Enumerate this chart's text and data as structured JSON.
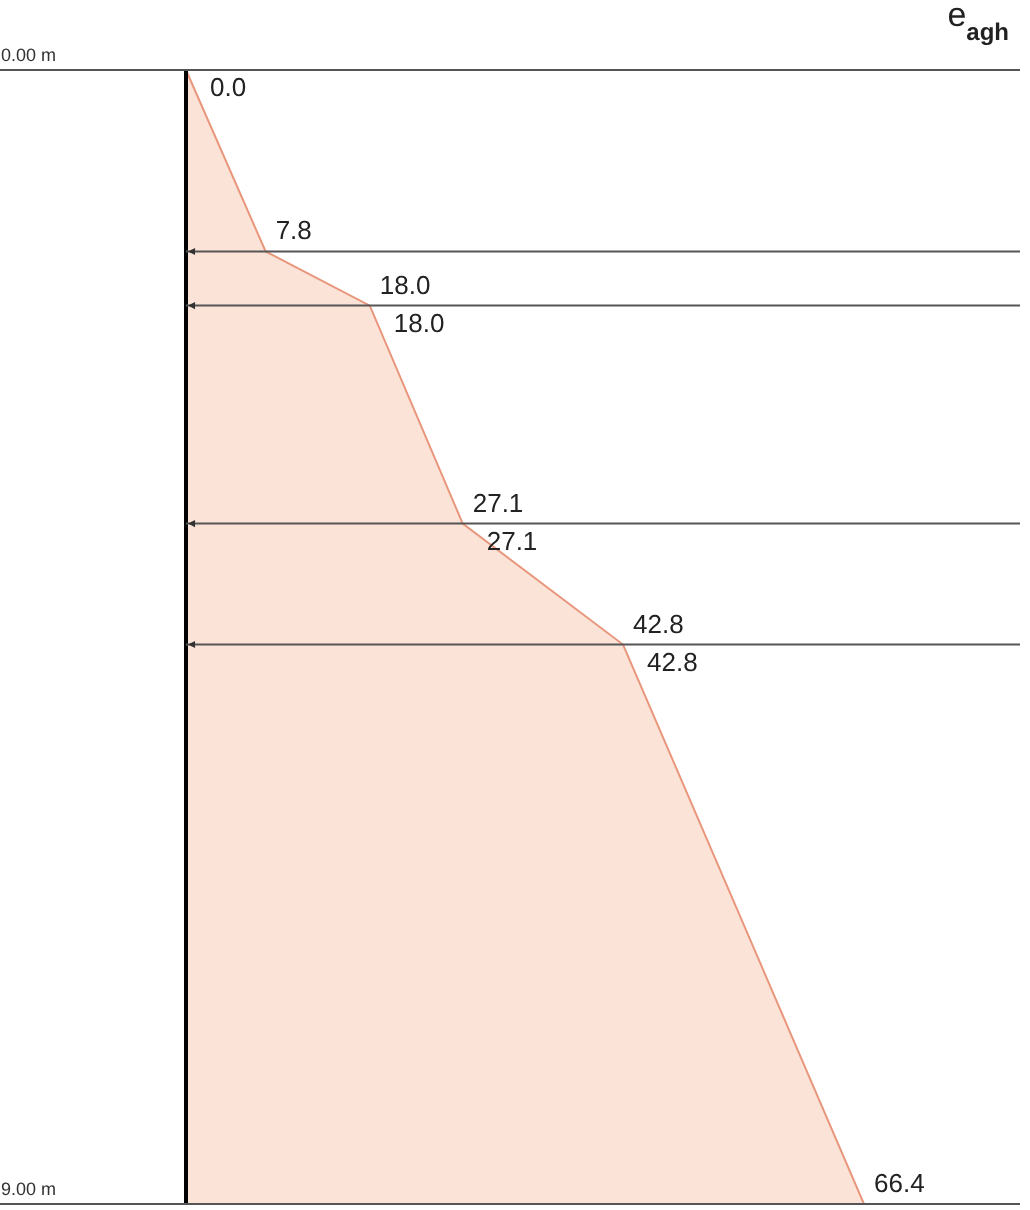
{
  "chart_data": {
    "type": "area",
    "orientation": "horizontal",
    "title": "e$_{agh}$",
    "x": [
      0,
      1.44,
      1.87,
      1.87,
      3.6,
      3.6,
      4.56,
      4.56,
      9
    ],
    "values": [
      0,
      7.8,
      18.0,
      18.0,
      27.1,
      27.1,
      42.8,
      42.8,
      66.4
    ],
    "color": "#fbe3d8",
    "ylim": [
      9,
      0
    ],
    "yticks": [
      {
        "value": 0,
        "label": "0.00 m"
      },
      {
        "value": 9,
        "label": "9.00 m"
      }
    ],
    "value_labels": [
      "0.0",
      "7.8",
      "18.0",
      "18.0",
      "27.1",
      "27.1",
      "42.8",
      "42.8",
      "66.4"
    ],
    "ref_lines": [
      {
        "axis": "y",
        "value": 0
      },
      {
        "axis": "y",
        "value": 1.44
      },
      {
        "axis": "y",
        "value": 1.87
      },
      {
        "axis": "y",
        "value": 3.6
      },
      {
        "axis": "y",
        "value": 4.56
      },
      {
        "axis": "y",
        "value": 9
      }
    ],
    "grid": false
  }
}
